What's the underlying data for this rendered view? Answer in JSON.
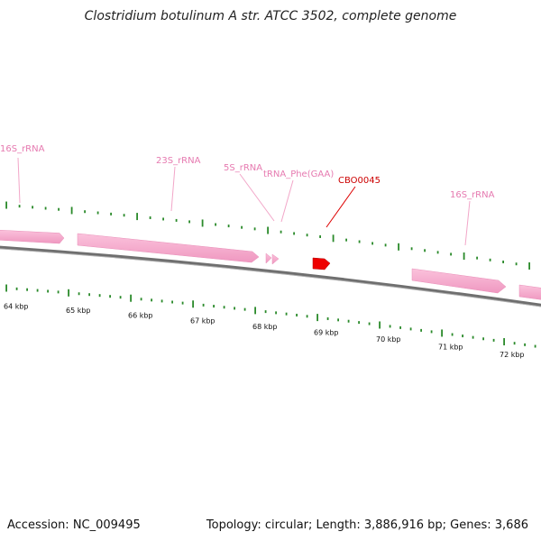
{
  "title": "Clostridium botulinum A str. ATCC 3502, complete genome",
  "footer": {
    "accession": "Accession: NC_009495",
    "summary": "Topology: circular; Length: 3,886,916 bp; Genes: 3,686"
  },
  "colors": {
    "backbone": "#7a7a7a",
    "rrna": "#f7a8cc",
    "rrna_dark": "#e389b2",
    "highlight_gene": "#ee0000",
    "tick": "#2a8a2a",
    "rrna_label": "#e67ab0",
    "highlight_label": "#cc0000"
  },
  "scale": {
    "unit": "kbp",
    "labels": [
      "64 kbp",
      "65 kbp",
      "66 kbp",
      "67 kbp",
      "68 kbp",
      "69 kbp",
      "70 kbp",
      "71 kbp",
      "72 kbp"
    ]
  },
  "features": [
    {
      "name": "16S_rRNA",
      "type": "rRNA",
      "label_visible": true
    },
    {
      "name": "23S_rRNA",
      "type": "rRNA",
      "label_visible": true
    },
    {
      "name": "5S_rRNA",
      "type": "rRNA",
      "label_visible": true
    },
    {
      "name": "tRNA_Phe(GAA)",
      "type": "tRNA",
      "label_visible": true
    },
    {
      "name": "CBO0045",
      "type": "gene",
      "highlighted": true,
      "label_visible": true
    },
    {
      "name": "16S_rRNA",
      "type": "rRNA",
      "label_visible": true
    }
  ]
}
